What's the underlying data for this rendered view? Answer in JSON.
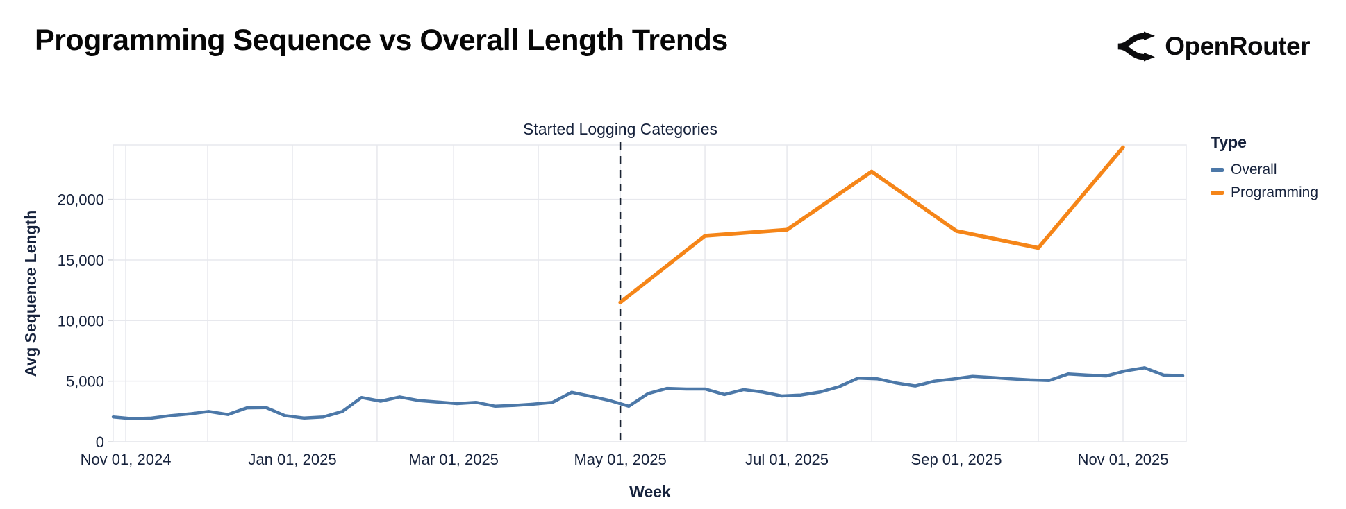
{
  "header": {
    "title": "Programming Sequence vs Overall Length Trends",
    "brand": "OpenRouter"
  },
  "chart_data": {
    "type": "line",
    "title": "Programming Sequence vs Overall Length Trends",
    "xlabel": "Week",
    "ylabel": "Avg Sequence Length",
    "legend_title": "Type",
    "legend_position": "right",
    "grid": true,
    "background": "#ffffff",
    "text_color": "#16223c",
    "grid_color": "#e7e8ed",
    "annotation": {
      "label": "Started Logging Categories",
      "date": "May 01, 2025",
      "line_style": "dashed",
      "line_color": "#1a2332"
    },
    "x_axis": {
      "tick_labels": [
        "Nov 01, 2024",
        "Jan 01, 2025",
        "Mar 01, 2025",
        "May 01, 2025",
        "Jul 01, 2025",
        "Sep 01, 2025",
        "Nov 01, 2025"
      ],
      "month_gridlines": [
        "Nov 01, 2024",
        "Dec 01, 2024",
        "Jan 01, 2025",
        "Feb 01, 2025",
        "Mar 01, 2025",
        "Apr 01, 2025",
        "May 01, 2025",
        "Jun 01, 2025",
        "Jul 01, 2025",
        "Aug 01, 2025",
        "Sep 01, 2025",
        "Oct 01, 2025",
        "Nov 01, 2025"
      ],
      "range_start": "Oct 27, 2024",
      "range_end": "Nov 23, 2025"
    },
    "y_axis": {
      "tick_labels": [
        "0",
        "5,000",
        "10,000",
        "15,000",
        "20,000"
      ],
      "tick_values": [
        0,
        5000,
        10000,
        15000,
        20000
      ],
      "max": 24500
    },
    "series": [
      {
        "name": "Overall",
        "color": "#4c78a8",
        "cadence": "weekly",
        "first_point": "Oct 27, 2024",
        "values": [
          2050,
          1900,
          1950,
          2150,
          2300,
          2500,
          2250,
          2800,
          2820,
          2150,
          1960,
          2050,
          2500,
          3650,
          3350,
          3700,
          3400,
          3280,
          3150,
          3250,
          2930,
          3000,
          3100,
          3250,
          4080,
          3750,
          3400,
          2930,
          3970,
          4400,
          4350,
          4350,
          3900,
          4300,
          4100,
          3780,
          3850,
          4100,
          4540,
          5250,
          5200,
          4850,
          4600,
          5000,
          5180,
          5400,
          5300,
          5200,
          5100,
          5050,
          5600,
          5500,
          5430,
          5850,
          6100,
          5500,
          5450
        ]
      },
      {
        "name": "Programming",
        "color": "#f58518",
        "cadence": "monthly",
        "dates": [
          "May 01, 2025",
          "Jun 01, 2025",
          "Jul 01, 2025",
          "Aug 01, 2025",
          "Sep 01, 2025",
          "Oct 01, 2025",
          "Nov 01, 2025"
        ],
        "values": [
          11500,
          17000,
          17500,
          22300,
          17400,
          16000,
          24300
        ]
      }
    ]
  }
}
